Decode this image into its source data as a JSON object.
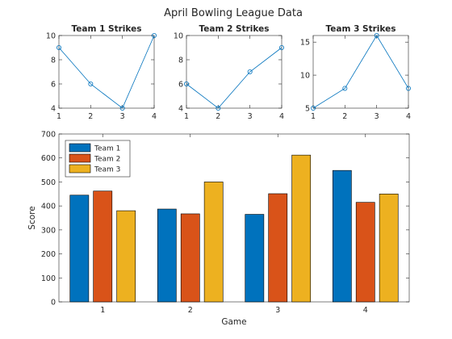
{
  "figure_title": "April Bowling League Data",
  "chart_data": [
    {
      "type": "line",
      "title": "Team 1 Strikes",
      "x": [
        1,
        2,
        3,
        4
      ],
      "series": [
        {
          "values": [
            9,
            6,
            4,
            10
          ]
        }
      ],
      "xlim": [
        1,
        4
      ],
      "ylim": [
        4,
        10
      ],
      "xticks": [
        "1",
        "2",
        "3",
        "4"
      ],
      "yticks": [
        "4",
        "6",
        "8",
        "10"
      ],
      "marker": "circle",
      "color": "#0072BD"
    },
    {
      "type": "line",
      "title": "Team 2 Strikes",
      "x": [
        1,
        2,
        3,
        4
      ],
      "series": [
        {
          "values": [
            6,
            4,
            7,
            9
          ]
        }
      ],
      "xlim": [
        1,
        4
      ],
      "ylim": [
        4,
        10
      ],
      "xticks": [
        "1",
        "2",
        "3",
        "4"
      ],
      "yticks": [
        "4",
        "6",
        "8",
        "10"
      ],
      "marker": "circle",
      "color": "#0072BD"
    },
    {
      "type": "line",
      "title": "Team 3 Strikes",
      "x": [
        1,
        2,
        3,
        4
      ],
      "series": [
        {
          "values": [
            5,
            8,
            16,
            8
          ]
        }
      ],
      "xlim": [
        1,
        4
      ],
      "ylim": [
        5,
        16
      ],
      "xticks": [
        "1",
        "2",
        "3",
        "4"
      ],
      "yticks": [
        "5",
        "10",
        "15"
      ],
      "marker": "circle",
      "color": "#0072BD"
    },
    {
      "type": "bar",
      "categories": [
        "1",
        "2",
        "3",
        "4"
      ],
      "series": [
        {
          "name": "Team 1",
          "values": [
            445,
            387,
            365,
            548
          ],
          "color": "#0072BD"
        },
        {
          "name": "Team 2",
          "values": [
            462,
            367,
            451,
            415
          ],
          "color": "#D95319"
        },
        {
          "name": "Team 3",
          "values": [
            380,
            500,
            612,
            450
          ],
          "color": "#EDB120"
        }
      ],
      "xlabel": "Game",
      "ylabel": "Score",
      "ylim": [
        0,
        700
      ],
      "yticks": [
        "0",
        "100",
        "200",
        "300",
        "400",
        "500",
        "600",
        "700"
      ],
      "legend": "top-left",
      "grid": false
    }
  ]
}
